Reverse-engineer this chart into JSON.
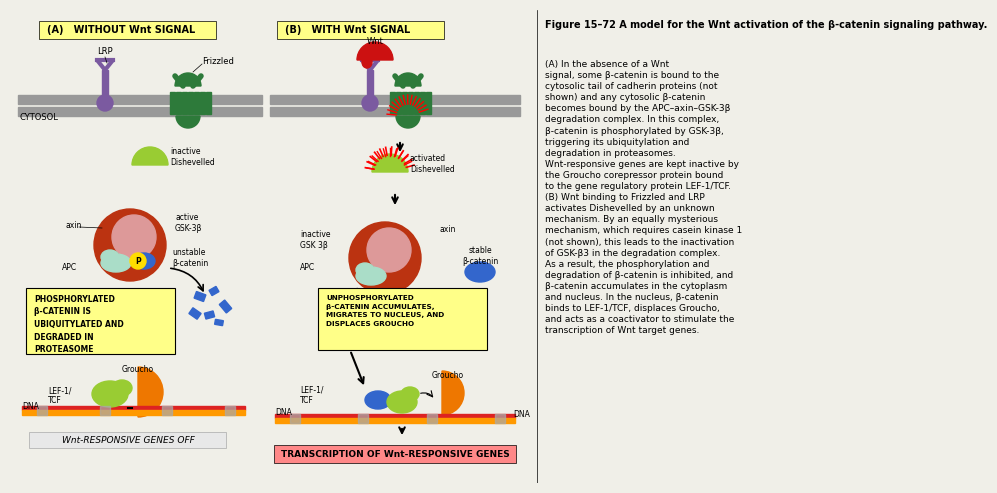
{
  "bg_color": "#f0efe8",
  "title_a": "(A)   WITHOUT Wnt SIGNAL",
  "title_b": "(B)   WITH Wnt SIGNAL",
  "label_a_bg": "#ffff88",
  "label_b_bg": "#ffff88",
  "cytosol_label": "CYTOSOL",
  "membrane_color": "#999999",
  "lrp_color": "#7b5aa0",
  "frizzled_color": "#2d7a3a",
  "wnt_color": "#cc1111",
  "dishevelled_color": "#99cc33",
  "axin_color": "#cc3300",
  "gsk_color": "#e8b8b8",
  "apc_color": "#aaddc8",
  "bcatenin_color": "#3366cc",
  "phospho_color": "#ffdd00",
  "lef_color": "#ff6600",
  "groucho_color": "#ee7700",
  "dna_red": "#dd2222",
  "dna_orange": "#ff9900",
  "dna_gray": "#aaaaaa",
  "fragment_color": "#3366cc",
  "box_yellow": "#ffff88",
  "box_pink": "#ff8888",
  "text_black": "#000000",
  "figure_title_bold": "Figure 15–72 A model for the Wnt activation of the β-catenin signaling pathway.",
  "figure_body": "(A) In the absence of a Wnt\nsignal, some β-catenin is bound to the\ncytosolic tail of cadherin proteins (not\nshown) and any cytosolic β-catenin\nbecomes bound by the APC–axin–GSK-3β\ndegradation complex. In this complex,\nβ-catenin is phosphorylated by GSK-3β,\ntriggering its ubiquitylation and\ndegradation in proteasomes.\nWnt-responsive genes are kept inactive by\nthe Groucho corepressor protein bound\nto the gene regulatory protein LEF-1/TCF.\n(B) Wnt binding to Frizzled and LRP\nactivates Dishevelled by an unknown\nmechanism. By an equally mysterious\nmechanism, which requires casein kinase 1\n(not shown), this leads to the inactivation\nof GSK-β3 in the degradation complex.\nAs a result, the phosphorylation and\ndegradation of β-catenin is inhibited, and\nβ-catenin accumulates in the cytoplasm\nand nucleus. In the nucleus, β-catenin\nbinds to LEF-1/TCF, displaces Groucho,\nand acts as a coactivator to stimulate the\ntranscription of Wnt target genes.",
  "box_a_text": "PHOSPHORYLATED\nβ-CATENIN IS\nUBIQUITYLATED AND\nDEGRADED IN\nPROTEASOME",
  "box_b_text": "UNPHOSPHORYLATED\nβ-CATENIN ACCUMULATES,\nMIGRATES TO NUCLEUS, AND\nDISPLACES GROUCHO",
  "genes_off_text": "Wnt-RESPONSIVE GENES OFF",
  "genes_on_text": "TRANSCRIPTION OF Wnt-RESPONSIVE GENES"
}
